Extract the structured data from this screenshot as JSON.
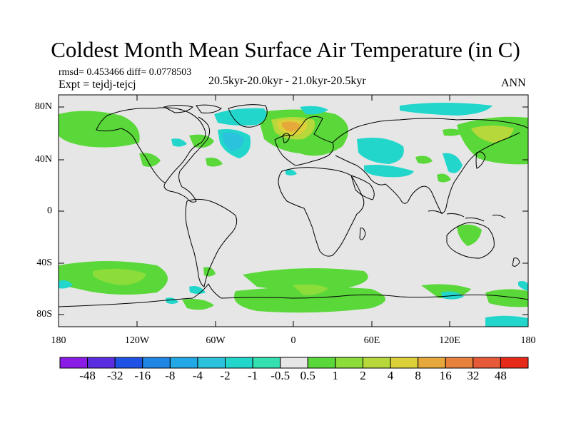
{
  "title": "Coldest Month Mean Surface Air Temperature (in C)",
  "stats": "rmsd= 0.453466 diff= 0.0778503",
  "experiment": "Expt = tejdj-tejcj",
  "period": "20.5kyr-20.0kyr - 21.0kyr-20.5kyr",
  "season": "ANN",
  "lat_labels": [
    "80N",
    "40N",
    "0",
    "40S",
    "80S"
  ],
  "lon_labels": [
    "180",
    "120W",
    "60W",
    "0",
    "60E",
    "120E",
    "180"
  ],
  "colorbar": {
    "labels": [
      "-48",
      "-32",
      "-16",
      "-8",
      "-4",
      "-2",
      "-1",
      "-0.5",
      "0.5",
      "1",
      "2",
      "4",
      "8",
      "16",
      "32",
      "48"
    ],
    "colors": [
      "#8a1ce6",
      "#5a2ee0",
      "#1f53e6",
      "#1f86e6",
      "#22a8e6",
      "#2ac2dc",
      "#22d6cc",
      "#34e0b0",
      "#e6e6e6",
      "#5ad83a",
      "#8cdc3a",
      "#b6d83a",
      "#dcd03a",
      "#e6a83a",
      "#e6803a",
      "#e65a3a",
      "#e62a1a"
    ]
  },
  "colors": {
    "land_ocean_background": "#e6e6e6",
    "coastline": "#000000"
  }
}
